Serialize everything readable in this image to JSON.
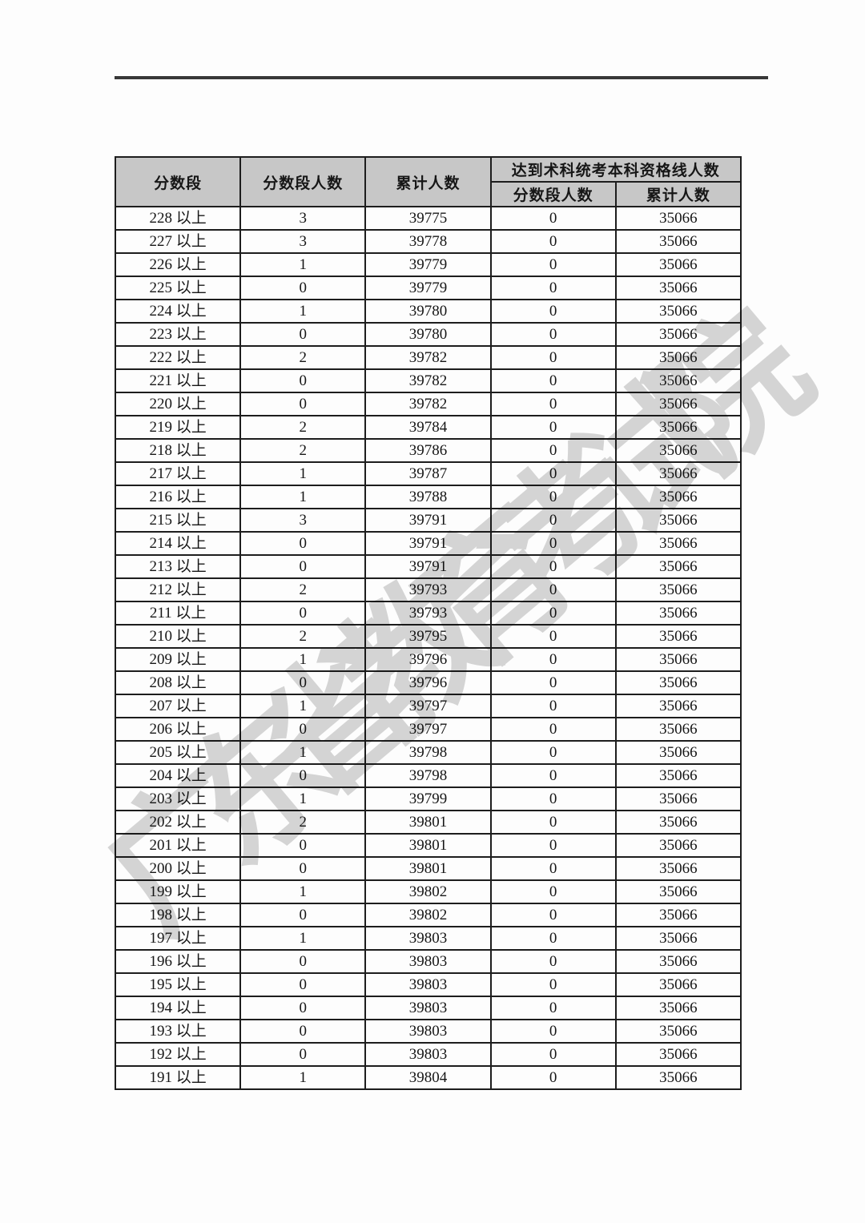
{
  "page": {
    "background_color": "#fdfdfd",
    "text_color": "#161616",
    "border_color": "#1d1d1d",
    "header_bg_color": "#c7c7c7"
  },
  "watermark": {
    "text": "广东省教育考试院",
    "color": "#b5b5b5"
  },
  "table": {
    "header": {
      "score_range": "分数段",
      "seg_count": "分数段人数",
      "cumulative": "累计人数",
      "qualified_group": "达到术科统考本科资格线人数",
      "qualified_seg_count": "分数段人数",
      "qualified_cumulative": "累计人数"
    },
    "rows": [
      {
        "range": "228 以上",
        "count": "3",
        "cumulative": "39775",
        "qualified_count": "0",
        "qualified_cumulative": "35066"
      },
      {
        "range": "227 以上",
        "count": "3",
        "cumulative": "39778",
        "qualified_count": "0",
        "qualified_cumulative": "35066"
      },
      {
        "range": "226 以上",
        "count": "1",
        "cumulative": "39779",
        "qualified_count": "0",
        "qualified_cumulative": "35066"
      },
      {
        "range": "225 以上",
        "count": "0",
        "cumulative": "39779",
        "qualified_count": "0",
        "qualified_cumulative": "35066"
      },
      {
        "range": "224 以上",
        "count": "1",
        "cumulative": "39780",
        "qualified_count": "0",
        "qualified_cumulative": "35066"
      },
      {
        "range": "223 以上",
        "count": "0",
        "cumulative": "39780",
        "qualified_count": "0",
        "qualified_cumulative": "35066"
      },
      {
        "range": "222 以上",
        "count": "2",
        "cumulative": "39782",
        "qualified_count": "0",
        "qualified_cumulative": "35066"
      },
      {
        "range": "221 以上",
        "count": "0",
        "cumulative": "39782",
        "qualified_count": "0",
        "qualified_cumulative": "35066"
      },
      {
        "range": "220 以上",
        "count": "0",
        "cumulative": "39782",
        "qualified_count": "0",
        "qualified_cumulative": "35066"
      },
      {
        "range": "219 以上",
        "count": "2",
        "cumulative": "39784",
        "qualified_count": "0",
        "qualified_cumulative": "35066"
      },
      {
        "range": "218 以上",
        "count": "2",
        "cumulative": "39786",
        "qualified_count": "0",
        "qualified_cumulative": "35066"
      },
      {
        "range": "217 以上",
        "count": "1",
        "cumulative": "39787",
        "qualified_count": "0",
        "qualified_cumulative": "35066"
      },
      {
        "range": "216 以上",
        "count": "1",
        "cumulative": "39788",
        "qualified_count": "0",
        "qualified_cumulative": "35066"
      },
      {
        "range": "215 以上",
        "count": "3",
        "cumulative": "39791",
        "qualified_count": "0",
        "qualified_cumulative": "35066"
      },
      {
        "range": "214 以上",
        "count": "0",
        "cumulative": "39791",
        "qualified_count": "0",
        "qualified_cumulative": "35066"
      },
      {
        "range": "213 以上",
        "count": "0",
        "cumulative": "39791",
        "qualified_count": "0",
        "qualified_cumulative": "35066"
      },
      {
        "range": "212 以上",
        "count": "2",
        "cumulative": "39793",
        "qualified_count": "0",
        "qualified_cumulative": "35066"
      },
      {
        "range": "211 以上",
        "count": "0",
        "cumulative": "39793",
        "qualified_count": "0",
        "qualified_cumulative": "35066"
      },
      {
        "range": "210 以上",
        "count": "2",
        "cumulative": "39795",
        "qualified_count": "0",
        "qualified_cumulative": "35066"
      },
      {
        "range": "209 以上",
        "count": "1",
        "cumulative": "39796",
        "qualified_count": "0",
        "qualified_cumulative": "35066"
      },
      {
        "range": "208 以上",
        "count": "0",
        "cumulative": "39796",
        "qualified_count": "0",
        "qualified_cumulative": "35066"
      },
      {
        "range": "207 以上",
        "count": "1",
        "cumulative": "39797",
        "qualified_count": "0",
        "qualified_cumulative": "35066"
      },
      {
        "range": "206 以上",
        "count": "0",
        "cumulative": "39797",
        "qualified_count": "0",
        "qualified_cumulative": "35066"
      },
      {
        "range": "205 以上",
        "count": "1",
        "cumulative": "39798",
        "qualified_count": "0",
        "qualified_cumulative": "35066"
      },
      {
        "range": "204 以上",
        "count": "0",
        "cumulative": "39798",
        "qualified_count": "0",
        "qualified_cumulative": "35066"
      },
      {
        "range": "203 以上",
        "count": "1",
        "cumulative": "39799",
        "qualified_count": "0",
        "qualified_cumulative": "35066"
      },
      {
        "range": "202 以上",
        "count": "2",
        "cumulative": "39801",
        "qualified_count": "0",
        "qualified_cumulative": "35066"
      },
      {
        "range": "201 以上",
        "count": "0",
        "cumulative": "39801",
        "qualified_count": "0",
        "qualified_cumulative": "35066"
      },
      {
        "range": "200 以上",
        "count": "0",
        "cumulative": "39801",
        "qualified_count": "0",
        "qualified_cumulative": "35066"
      },
      {
        "range": "199 以上",
        "count": "1",
        "cumulative": "39802",
        "qualified_count": "0",
        "qualified_cumulative": "35066"
      },
      {
        "range": "198 以上",
        "count": "0",
        "cumulative": "39802",
        "qualified_count": "0",
        "qualified_cumulative": "35066"
      },
      {
        "range": "197 以上",
        "count": "1",
        "cumulative": "39803",
        "qualified_count": "0",
        "qualified_cumulative": "35066"
      },
      {
        "range": "196 以上",
        "count": "0",
        "cumulative": "39803",
        "qualified_count": "0",
        "qualified_cumulative": "35066"
      },
      {
        "range": "195 以上",
        "count": "0",
        "cumulative": "39803",
        "qualified_count": "0",
        "qualified_cumulative": "35066"
      },
      {
        "range": "194 以上",
        "count": "0",
        "cumulative": "39803",
        "qualified_count": "0",
        "qualified_cumulative": "35066"
      },
      {
        "range": "193 以上",
        "count": "0",
        "cumulative": "39803",
        "qualified_count": "0",
        "qualified_cumulative": "35066"
      },
      {
        "range": "192 以上",
        "count": "0",
        "cumulative": "39803",
        "qualified_count": "0",
        "qualified_cumulative": "35066"
      },
      {
        "range": "191 以上",
        "count": "1",
        "cumulative": "39804",
        "qualified_count": "0",
        "qualified_cumulative": "35066"
      }
    ]
  }
}
